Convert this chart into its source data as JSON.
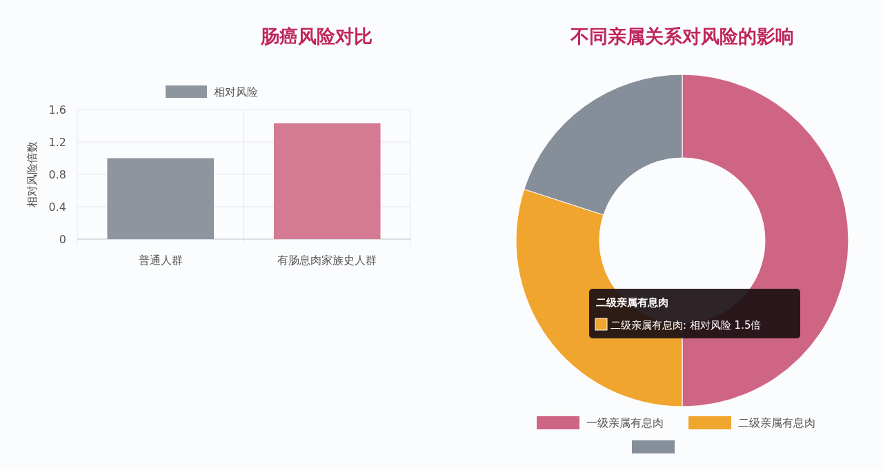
{
  "chart_data": [
    {
      "type": "bar",
      "title": "肠癌风险对比",
      "ylabel": "相对风险倍数",
      "categories": [
        "普通人群",
        "有肠息肉家族史人群"
      ],
      "series": [
        {
          "name": "相对风险",
          "color": "#8e959f",
          "colors": [
            "#8e959f",
            "#d47a93"
          ],
          "values": [
            1.0,
            1.43
          ]
        }
      ],
      "ylim": [
        0,
        1.6
      ],
      "yticks": [
        0,
        0.4,
        0.8,
        1.2,
        1.6
      ],
      "grid": true,
      "legend": "top"
    },
    {
      "type": "donut",
      "title": "不同亲属关系对风险的影响",
      "categories": [
        "一级亲属有息肉",
        "二级亲属有息肉",
        null
      ],
      "values": [
        50,
        30,
        20
      ],
      "colors": [
        "#cf6584",
        "#f0a52e",
        "#858e99"
      ],
      "legend": "bottom",
      "annotations": [
        "二级亲属有息肉",
        "二级亲属有息肉: 相对风险 1.5倍"
      ]
    }
  ]
}
